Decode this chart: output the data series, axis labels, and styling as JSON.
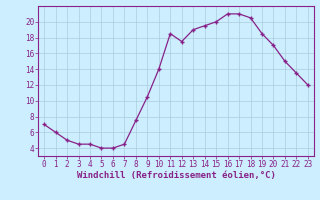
{
  "x": [
    0,
    1,
    2,
    3,
    4,
    5,
    6,
    7,
    8,
    9,
    10,
    11,
    12,
    13,
    14,
    15,
    16,
    17,
    18,
    19,
    20,
    21,
    22,
    23
  ],
  "y": [
    7,
    6,
    5,
    4.5,
    4.5,
    4,
    4,
    4.5,
    7.5,
    10.5,
    14,
    18.5,
    17.5,
    19,
    19.5,
    20,
    21,
    21,
    20.5,
    18.5,
    17,
    15,
    13.5,
    12
  ],
  "line_color": "#882288",
  "marker": "+",
  "marker_color": "#882288",
  "bg_color": "#cceeff",
  "grid_color": "#aaccdd",
  "xlabel": "Windchill (Refroidissement éolien,°C)",
  "xlabel_color": "#882288",
  "tick_color": "#882288",
  "spine_color": "#882288",
  "ylim": [
    3,
    22
  ],
  "yticks": [
    4,
    6,
    8,
    10,
    12,
    14,
    16,
    18,
    20
  ],
  "xlim": [
    -0.5,
    23.5
  ],
  "tick_fontsize": 5.5,
  "xlabel_fontsize": 6.5
}
